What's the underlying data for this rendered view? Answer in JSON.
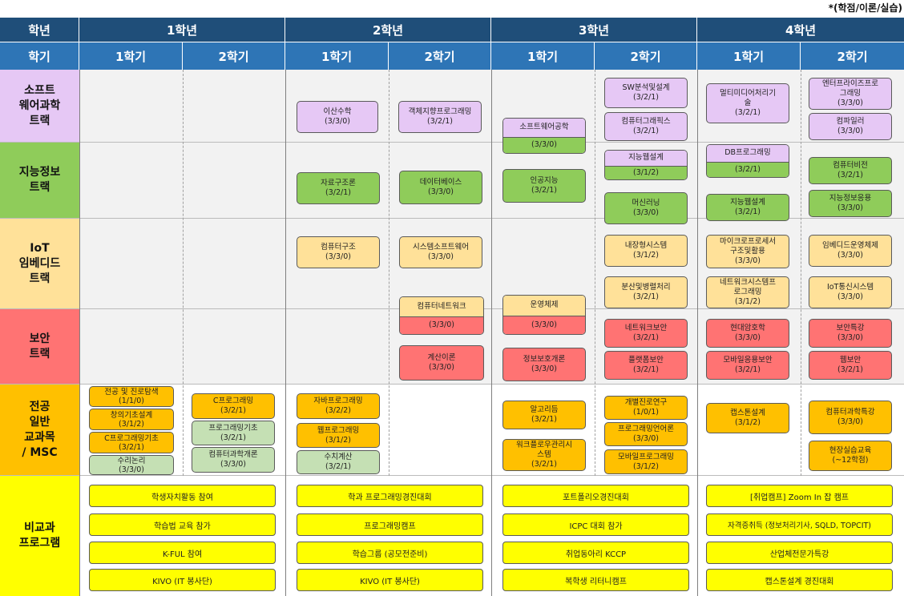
{
  "note": "*(학점/이론/실습)",
  "header": {
    "year_label": "학년",
    "semester_label": "학기",
    "years": [
      "1학년",
      "2학년",
      "3학년",
      "4학년"
    ],
    "semesters": [
      "1학기",
      "2학기",
      "1학기",
      "2학기",
      "1학기",
      "2학기",
      "1학기",
      "2학기"
    ]
  },
  "colors": {
    "header_dark": "#1f4e79",
    "header_light": "#2e75b6",
    "software": "#e6c8f5",
    "intelligence": "#8fcc5a",
    "iot": "#ffe199",
    "security": "#ff7373",
    "general": "#ffc000",
    "program": "#ffff00",
    "msc": "#c5e0b4"
  },
  "tracks": {
    "software": "소프트\n웨어과학\n트랙",
    "intelligence": "지능정보\n트랙",
    "iot": "IoT\n임베디드\n트랙",
    "security": "보안\n트랙",
    "general": "전공\n일반\n교과목\n/ MSC",
    "program": "비교과\n프로그램"
  },
  "courses": {
    "discrete": {
      "name": "이산수학",
      "credit": "(3/3/0)"
    },
    "oop": {
      "name": "객체지향프로그래밍",
      "credit": "(3/2/1)"
    },
    "sweng": {
      "name": "소프트웨어공학",
      "credit": "(3/3/0)"
    },
    "swanalysis": {
      "name": "SW분석및설계",
      "credit": "(3/2/1)"
    },
    "graphics": {
      "name": "컴퓨터그래픽스",
      "credit": "(3/2/1)"
    },
    "multimedia": {
      "name": "멀티미디어처리기\n술",
      "credit": "(3/2/1)"
    },
    "enterprise": {
      "name": "엔터프라이즈프로\n그래밍",
      "credit": "(3/3/0)"
    },
    "compiler": {
      "name": "컴파일러",
      "credit": "(3/3/0)"
    },
    "datastruct": {
      "name": "자료구조론",
      "credit": "(3/2/1)"
    },
    "database": {
      "name": "데이터베이스",
      "credit": "(3/3/0)"
    },
    "ai": {
      "name": "인공지능",
      "credit": "(3/2/1)"
    },
    "smartweb": {
      "name": "지능웹설계",
      "credit": "(3/1/2)"
    },
    "ml": {
      "name": "머신러닝",
      "credit": "(3/3/0)"
    },
    "dbprog": {
      "name": "DB프로그래밍",
      "credit": "(3/2/1)"
    },
    "smartweb2": {
      "name": "지능웹설계",
      "credit": "(3/2/1)"
    },
    "vision": {
      "name": "컴퓨터비전",
      "credit": "(3/2/1)"
    },
    "smartapp": {
      "name": "지능정보응용",
      "credit": "(3/3/0)"
    },
    "arch": {
      "name": "컴퓨터구조",
      "credit": "(3/3/0)"
    },
    "syssw": {
      "name": "시스템소프트웨어",
      "credit": "(3/3/0)"
    },
    "embedded": {
      "name": "내장형시스템",
      "credit": "(3/1/2)"
    },
    "parallel": {
      "name": "분산및병렬처리",
      "credit": "(3/2/1)"
    },
    "micro": {
      "name": "마이크로프로세서\n구조및활용",
      "credit": "(3/3/0)"
    },
    "netprog": {
      "name": "네트워크시스템프\n로그래밍",
      "credit": "(3/1/2)"
    },
    "embos": {
      "name": "임베디드운영체제",
      "credit": "(3/3/0)"
    },
    "iotcomm": {
      "name": "IoT통신시스템",
      "credit": "(3/3/0)"
    },
    "network": {
      "name": "컴퓨터네트워크",
      "credit": "(3/3/0)"
    },
    "os": {
      "name": "운영체제",
      "credit": "(3/3/0)"
    },
    "computation": {
      "name": "계산이론",
      "credit": "(3/3/0)"
    },
    "infosec": {
      "name": "정보보호개론",
      "credit": "(3/3/0)"
    },
    "netsec": {
      "name": "네트워크보안",
      "credit": "(3/2/1)"
    },
    "platsec": {
      "name": "플랫폼보안",
      "credit": "(3/2/1)"
    },
    "crypto": {
      "name": "현대암호학",
      "credit": "(3/3/0)"
    },
    "mobilesec": {
      "name": "모바일응용보안",
      "credit": "(3/2/1)"
    },
    "sectopic": {
      "name": "보안특강",
      "credit": "(3/3/0)"
    },
    "websec": {
      "name": "웹보안",
      "credit": "(3/2/1)"
    },
    "career": {
      "name": "전공 및 진로탐색",
      "credit": "(1/1/0)"
    },
    "creative": {
      "name": "창의기초설계",
      "credit": "(3/1/2)"
    },
    "cprog1": {
      "name": "C프로그래밍기초",
      "credit": "(3/2/1)"
    },
    "logic": {
      "name": "수리논리",
      "credit": "(3/3/0)"
    },
    "cprog": {
      "name": "C프로그래밍",
      "credit": "(3/2/1)"
    },
    "progbasic": {
      "name": "프로그래밍기초",
      "credit": "(3/2/1)"
    },
    "csintro": {
      "name": "컴퓨터과학개론",
      "credit": "(3/3/0)"
    },
    "java": {
      "name": "자바프로그래밍",
      "credit": "(3/2/2)"
    },
    "webprog": {
      "name": "웹프로그래밍",
      "credit": "(3/1/2)"
    },
    "numeric": {
      "name": "수치계산",
      "credit": "(3/2/1)"
    },
    "algo": {
      "name": "알고리듬",
      "credit": "(3/2/1)"
    },
    "workflow": {
      "name": "워크플로우관리시\n스템",
      "credit": "(3/2/1)"
    },
    "research": {
      "name": "개별진로연구",
      "credit": "(1/0/1)"
    },
    "proglang": {
      "name": "프로그래밍언어론",
      "credit": "(3/3/0)"
    },
    "mobileprog": {
      "name": "모바일프로그래밍",
      "credit": "(3/1/2)"
    },
    "capstone": {
      "name": "캡스톤설계",
      "credit": "(3/1/2)"
    },
    "cstopic": {
      "name": "컴퓨터과학특강",
      "credit": "(3/3/0)"
    },
    "intern": {
      "name": "현장실습교육",
      "credit": "(~12학점)"
    }
  },
  "programs": {
    "y1": [
      "학생자치활동 참여",
      "학습법 교육 참가",
      "K-FUL 참여",
      "KIVO (IT 봉사단)"
    ],
    "y2": [
      "학과 프로그래밍경진대회",
      "프로그래밍캠프",
      "학습그룹 (공모전준비)",
      "KIVO (IT 봉사단)"
    ],
    "y3": [
      "포트폴리오경진대회",
      "ICPC 대회 참가",
      "취업동아리 KCCP",
      "복학생 리터니캠프"
    ],
    "y4": [
      "[취업캠프] Zoom In 잡 캠프",
      "자격증취득 (정보처리기사, SQLD, TOPCIT)",
      "산업체전문가특강",
      "캡스톤설계 경진대회"
    ]
  }
}
